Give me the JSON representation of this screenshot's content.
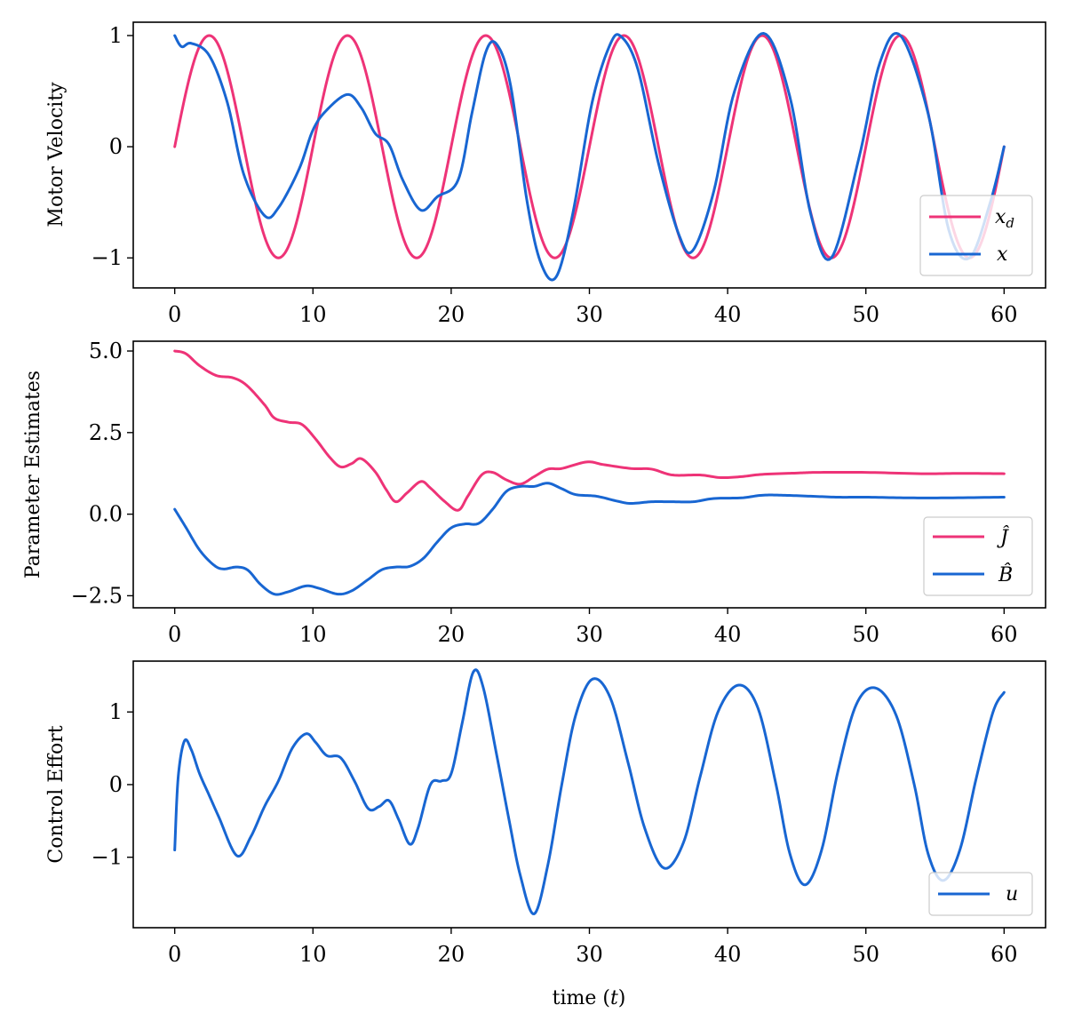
{
  "figure": {
    "xlabel_prefix": "time (",
    "xlabel_var": "t",
    "xlabel_suffix": ")"
  },
  "chart_data": [
    {
      "type": "line",
      "id": "velocity",
      "title": "",
      "xlabel": "",
      "ylabel": "Motor Velocity",
      "xlim": [
        -3,
        63
      ],
      "ylim": [
        -1.27,
        1.12
      ],
      "xticks": [
        0,
        10,
        20,
        30,
        40,
        50,
        60
      ],
      "yticks": [
        {
          "value": -1,
          "label": "−1"
        },
        {
          "value": 0,
          "label": "0"
        },
        {
          "value": 1,
          "label": "1"
        }
      ],
      "legend_position": "lower-right",
      "series": [
        {
          "name": "x_d",
          "label_base": "x",
          "label_sub": "d",
          "color": "#ee3377",
          "generator": "sine",
          "amplitude": 1,
          "period": 10,
          "phase": 0,
          "t_start": 0,
          "t_end": 60
        },
        {
          "name": "x",
          "label_base": "x",
          "label_sub": "",
          "color": "#1866d2",
          "generator": "spline",
          "points": [
            [
              0,
              1.0
            ],
            [
              0.5,
              0.9
            ],
            [
              1.2,
              0.93
            ],
            [
              2.5,
              0.82
            ],
            [
              3.8,
              0.4
            ],
            [
              5.0,
              -0.25
            ],
            [
              6.5,
              -0.62
            ],
            [
              7.5,
              -0.55
            ],
            [
              9.0,
              -0.2
            ],
            [
              10.0,
              0.15
            ],
            [
              11.0,
              0.33
            ],
            [
              12.5,
              0.47
            ],
            [
              13.5,
              0.35
            ],
            [
              14.5,
              0.12
            ],
            [
              15.5,
              0.02
            ],
            [
              16.5,
              -0.3
            ],
            [
              17.8,
              -0.57
            ],
            [
              19.0,
              -0.45
            ],
            [
              20.5,
              -0.3
            ],
            [
              21.5,
              0.3
            ],
            [
              22.5,
              0.85
            ],
            [
              23.3,
              0.92
            ],
            [
              24.3,
              0.55
            ],
            [
              25.5,
              -0.5
            ],
            [
              26.5,
              -1.05
            ],
            [
              27.6,
              -1.17
            ],
            [
              28.8,
              -0.6
            ],
            [
              30.2,
              0.4
            ],
            [
              31.5,
              0.92
            ],
            [
              32.3,
              0.99
            ],
            [
              33.5,
              0.7
            ],
            [
              35.0,
              -0.15
            ],
            [
              36.5,
              -0.8
            ],
            [
              37.5,
              -0.93
            ],
            [
              39.0,
              -0.4
            ],
            [
              40.5,
              0.5
            ],
            [
              42.6,
              1.02
            ],
            [
              44.5,
              0.45
            ],
            [
              46.0,
              -0.6
            ],
            [
              47.5,
              -1.0
            ],
            [
              49.5,
              -0.1
            ],
            [
              51.0,
              0.75
            ],
            [
              52.5,
              1.0
            ],
            [
              54.5,
              0.3
            ],
            [
              56.0,
              -0.75
            ],
            [
              57.5,
              -1.0
            ],
            [
              59.0,
              -0.5
            ],
            [
              60,
              0.0
            ]
          ]
        }
      ]
    },
    {
      "type": "line",
      "id": "parameters",
      "title": "",
      "xlabel": "",
      "ylabel": "Parameter Estimates",
      "xlim": [
        -3,
        63
      ],
      "ylim": [
        -2.87,
        5.3
      ],
      "xticks": [
        0,
        10,
        20,
        30,
        40,
        50,
        60
      ],
      "yticks": [
        {
          "value": -2.5,
          "label": "−2.5"
        },
        {
          "value": 0,
          "label": "0.0"
        },
        {
          "value": 2.5,
          "label": "2.5"
        },
        {
          "value": 5,
          "label": "5.0"
        }
      ],
      "legend_position": "lower-right",
      "series": [
        {
          "name": "Ĵ",
          "label_base": "Ĵ",
          "label_sub": "",
          "color": "#ee3377",
          "generator": "spline",
          "points": [
            [
              0,
              5.0
            ],
            [
              0.8,
              4.92
            ],
            [
              1.8,
              4.55
            ],
            [
              3.0,
              4.25
            ],
            [
              4.2,
              4.18
            ],
            [
              5.2,
              3.95
            ],
            [
              6.5,
              3.35
            ],
            [
              7.2,
              2.95
            ],
            [
              8.2,
              2.82
            ],
            [
              9.2,
              2.75
            ],
            [
              10.2,
              2.3
            ],
            [
              11.2,
              1.75
            ],
            [
              12.0,
              1.45
            ],
            [
              12.8,
              1.55
            ],
            [
              13.5,
              1.7
            ],
            [
              14.5,
              1.3
            ],
            [
              15.3,
              0.75
            ],
            [
              16.0,
              0.38
            ],
            [
              16.8,
              0.65
            ],
            [
              17.8,
              1.0
            ],
            [
              18.5,
              0.8
            ],
            [
              19.5,
              0.4
            ],
            [
              20.5,
              0.12
            ],
            [
              21.2,
              0.55
            ],
            [
              22.2,
              1.2
            ],
            [
              23.0,
              1.28
            ],
            [
              24.0,
              1.05
            ],
            [
              25.0,
              0.92
            ],
            [
              26.0,
              1.15
            ],
            [
              27.0,
              1.38
            ],
            [
              28.0,
              1.4
            ],
            [
              29.8,
              1.6
            ],
            [
              31.0,
              1.52
            ],
            [
              33.0,
              1.4
            ],
            [
              34.5,
              1.38
            ],
            [
              36.0,
              1.2
            ],
            [
              38.0,
              1.2
            ],
            [
              39.5,
              1.12
            ],
            [
              41.0,
              1.15
            ],
            [
              42.5,
              1.22
            ],
            [
              45.0,
              1.26
            ],
            [
              46.5,
              1.28
            ],
            [
              50.0,
              1.28
            ],
            [
              54.0,
              1.24
            ],
            [
              57.0,
              1.25
            ],
            [
              60,
              1.24
            ]
          ]
        },
        {
          "name": "B̂",
          "label_base": "B̂",
          "label_sub": "",
          "color": "#1866d2",
          "generator": "spline",
          "points": [
            [
              0,
              0.15
            ],
            [
              0.8,
              -0.4
            ],
            [
              1.8,
              -1.1
            ],
            [
              2.8,
              -1.55
            ],
            [
              3.5,
              -1.68
            ],
            [
              4.5,
              -1.62
            ],
            [
              5.3,
              -1.72
            ],
            [
              6.2,
              -2.15
            ],
            [
              7.2,
              -2.45
            ],
            [
              8.2,
              -2.38
            ],
            [
              9.5,
              -2.2
            ],
            [
              10.5,
              -2.28
            ],
            [
              11.8,
              -2.45
            ],
            [
              12.8,
              -2.35
            ],
            [
              14.0,
              -2.0
            ],
            [
              15.0,
              -1.7
            ],
            [
              16.0,
              -1.62
            ],
            [
              17.0,
              -1.6
            ],
            [
              18.0,
              -1.35
            ],
            [
              19.0,
              -0.85
            ],
            [
              20.0,
              -0.42
            ],
            [
              21.0,
              -0.3
            ],
            [
              22.0,
              -0.28
            ],
            [
              23.0,
              0.15
            ],
            [
              24.0,
              0.7
            ],
            [
              25.0,
              0.85
            ],
            [
              26.0,
              0.85
            ],
            [
              27.0,
              0.95
            ],
            [
              28.0,
              0.78
            ],
            [
              29.0,
              0.6
            ],
            [
              30.5,
              0.55
            ],
            [
              32.0,
              0.4
            ],
            [
              33.0,
              0.33
            ],
            [
              34.5,
              0.38
            ],
            [
              36.0,
              0.38
            ],
            [
              37.5,
              0.38
            ],
            [
              39.0,
              0.48
            ],
            [
              41.0,
              0.5
            ],
            [
              42.5,
              0.58
            ],
            [
              44.0,
              0.58
            ],
            [
              46.0,
              0.55
            ],
            [
              48.0,
              0.52
            ],
            [
              50.0,
              0.52
            ],
            [
              53.0,
              0.5
            ],
            [
              56.0,
              0.5
            ],
            [
              60,
              0.52
            ]
          ]
        }
      ]
    },
    {
      "type": "line",
      "id": "control",
      "title": "",
      "xlabel": "time (t)",
      "ylabel": "Control Effort",
      "xlim": [
        -3,
        63
      ],
      "ylim": [
        -1.97,
        1.7
      ],
      "xticks": [
        0,
        10,
        20,
        30,
        40,
        50,
        60
      ],
      "yticks": [
        {
          "value": -1,
          "label": "−1"
        },
        {
          "value": 0,
          "label": "0"
        },
        {
          "value": 1,
          "label": "1"
        }
      ],
      "legend_position": "lower-right",
      "series": [
        {
          "name": "u",
          "label_base": "u",
          "label_sub": "",
          "color": "#1866d2",
          "generator": "spline",
          "points": [
            [
              0,
              -0.9
            ],
            [
              0.25,
              0.1
            ],
            [
              0.7,
              0.6
            ],
            [
              1.2,
              0.48
            ],
            [
              1.8,
              0.15
            ],
            [
              2.5,
              -0.15
            ],
            [
              3.2,
              -0.45
            ],
            [
              4.5,
              -0.98
            ],
            [
              5.5,
              -0.72
            ],
            [
              6.5,
              -0.3
            ],
            [
              7.5,
              0.05
            ],
            [
              8.5,
              0.5
            ],
            [
              9.5,
              0.7
            ],
            [
              10.2,
              0.58
            ],
            [
              11.0,
              0.4
            ],
            [
              12.0,
              0.37
            ],
            [
              13.0,
              0.05
            ],
            [
              14.0,
              -0.33
            ],
            [
              14.8,
              -0.3
            ],
            [
              15.5,
              -0.22
            ],
            [
              16.2,
              -0.48
            ],
            [
              17.0,
              -0.82
            ],
            [
              17.6,
              -0.6
            ],
            [
              18.5,
              0.0
            ],
            [
              19.3,
              0.05
            ],
            [
              20.0,
              0.15
            ],
            [
              20.8,
              0.85
            ],
            [
              21.6,
              1.55
            ],
            [
              22.3,
              1.35
            ],
            [
              23.3,
              0.4
            ],
            [
              24.2,
              -0.5
            ],
            [
              25.0,
              -1.25
            ],
            [
              26.0,
              -1.78
            ],
            [
              27.0,
              -1.1
            ],
            [
              28.0,
              0.0
            ],
            [
              29.0,
              0.95
            ],
            [
              30.2,
              1.45
            ],
            [
              31.5,
              1.2
            ],
            [
              32.8,
              0.3
            ],
            [
              34.0,
              -0.6
            ],
            [
              35.4,
              -1.15
            ],
            [
              36.8,
              -0.8
            ],
            [
              38.0,
              0.1
            ],
            [
              39.3,
              1.0
            ],
            [
              40.8,
              1.37
            ],
            [
              42.2,
              1.05
            ],
            [
              43.5,
              0.0
            ],
            [
              44.5,
              -0.95
            ],
            [
              45.6,
              -1.38
            ],
            [
              46.8,
              -0.9
            ],
            [
              48.0,
              0.2
            ],
            [
              49.3,
              1.1
            ],
            [
              50.7,
              1.33
            ],
            [
              52.2,
              0.95
            ],
            [
              53.5,
              0.0
            ],
            [
              54.5,
              -0.95
            ],
            [
              55.6,
              -1.32
            ],
            [
              56.8,
              -0.9
            ],
            [
              58.0,
              0.1
            ],
            [
              59.2,
              1.0
            ],
            [
              60,
              1.27
            ]
          ]
        }
      ]
    }
  ]
}
